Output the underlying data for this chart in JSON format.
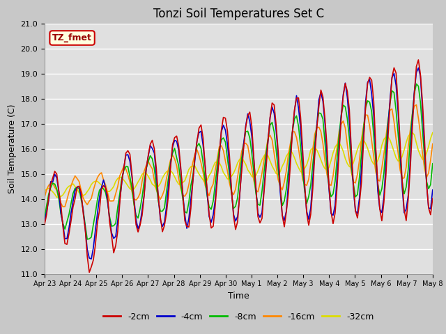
{
  "title": "Tonzi Soil Temperatures Set C",
  "xlabel": "Time",
  "ylabel": "Soil Temperature (C)",
  "ylim": [
    11.0,
    21.0
  ],
  "yticks": [
    11.0,
    12.0,
    13.0,
    14.0,
    15.0,
    16.0,
    17.0,
    18.0,
    19.0,
    20.0,
    21.0
  ],
  "legend_label": "TZ_fmet",
  "series_labels": [
    "-2cm",
    "-4cm",
    "-8cm",
    "-16cm",
    "-32cm"
  ],
  "series_colors": [
    "#cc0000",
    "#0000cc",
    "#00bb00",
    "#ff8800",
    "#dddd00"
  ],
  "fig_width": 6.4,
  "fig_height": 4.8,
  "dpi": 100,
  "title_fontsize": 12,
  "label_fontsize": 9,
  "tick_fontsize": 8,
  "line_width": 1.2
}
